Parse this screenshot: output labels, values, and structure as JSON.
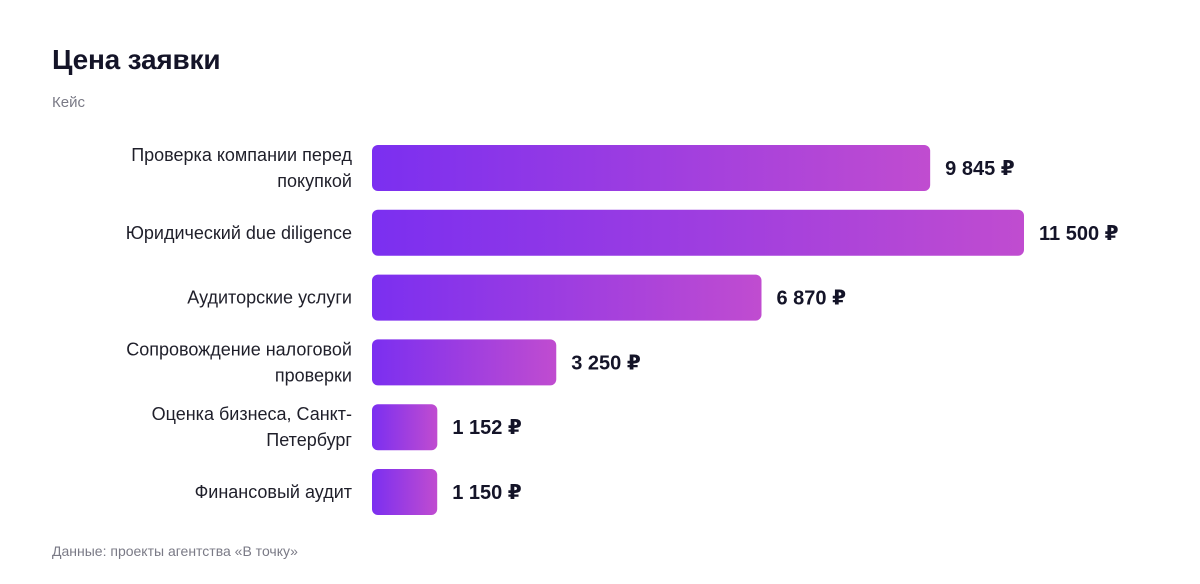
{
  "header": {
    "title": "Цена заявки",
    "subtitle": "Кейс"
  },
  "footer": {
    "source": "Данные: проекты агентства «В точку»"
  },
  "colors": {
    "bar_start": "#7b2ff0",
    "bar_end": "#c04cd0",
    "text": "#141428",
    "muted": "#7a7a86"
  },
  "chart_data": {
    "type": "bar",
    "orientation": "horizontal",
    "title": "Цена заявки",
    "subtitle": "Кейс",
    "categories": [
      [
        "Проверка компании перед",
        "покупкой"
      ],
      [
        "Юридический due diligence"
      ],
      [
        "Аудиторские услуги"
      ],
      [
        "Сопровождение налоговой",
        "проверки"
      ],
      [
        "Оценка бизнеса, Санкт-",
        "Петербург"
      ],
      [
        "Финансовый аудит"
      ]
    ],
    "values": [
      9845,
      11500,
      6870,
      3250,
      1152,
      1150
    ],
    "value_labels": [
      "9 845 ₽",
      "11 500 ₽",
      "6 870 ₽",
      "3 250 ₽",
      "1 152 ₽",
      "1 150 ₽"
    ],
    "xlim": [
      0,
      11500
    ],
    "grid": false,
    "legend": "none"
  }
}
